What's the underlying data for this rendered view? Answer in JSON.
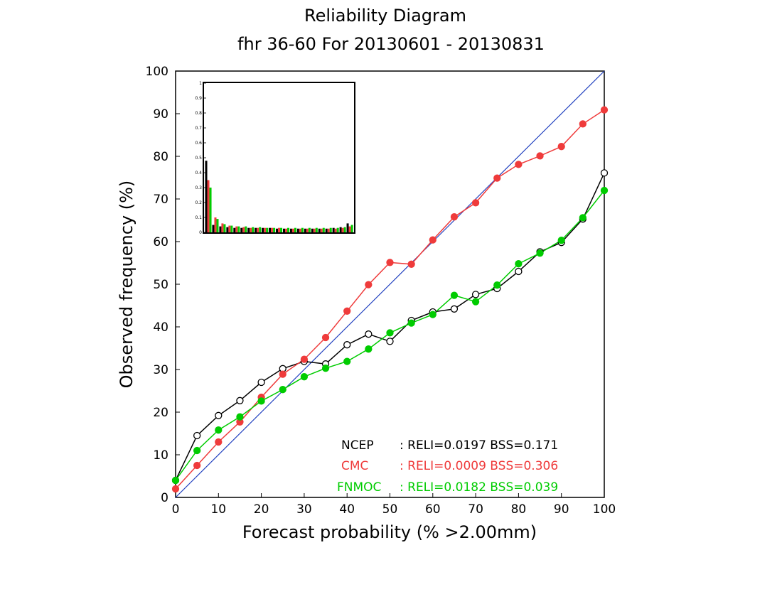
{
  "chart_data": {
    "type": "line",
    "title": "Reliability Diagram",
    "subtitle": "fhr 36-60 For 20130601 - 20130831",
    "xlabel": "Forecast probability (% >2.00mm)",
    "ylabel": "Observed frequency (%)",
    "xlim": [
      0,
      100
    ],
    "ylim": [
      0,
      100
    ],
    "x_ticks": [
      "0",
      "10",
      "20",
      "30",
      "40",
      "50",
      "60",
      "70",
      "80",
      "90",
      "100"
    ],
    "y_ticks": [
      "0",
      "10",
      "20",
      "30",
      "40",
      "50",
      "60",
      "70",
      "80",
      "90",
      "100"
    ],
    "diagonal_color": "#1f3fbf",
    "x": [
      0,
      5,
      10,
      15,
      20,
      25,
      30,
      35,
      40,
      45,
      50,
      55,
      60,
      65,
      70,
      75,
      80,
      85,
      90,
      95,
      100
    ],
    "series": [
      {
        "name": "NCEP",
        "color": "#000000",
        "marker": "open-circle",
        "values": [
          4,
          14.5,
          19.2,
          22.7,
          27,
          30.2,
          31.9,
          31.3,
          35.8,
          38.3,
          36.6,
          41.5,
          43.5,
          44.2,
          47.6,
          49,
          53,
          57.6,
          59.8,
          65.3,
          76.1
        ],
        "stats": ": RELI=0.0197  BSS=0.171"
      },
      {
        "name": "CMC",
        "color": "#ef3b3b",
        "marker": "filled-circle",
        "values": [
          2,
          7.5,
          13,
          17.7,
          23.5,
          28.9,
          32.4,
          37.5,
          43.7,
          49.9,
          55.1,
          54.7,
          60.4,
          65.8,
          69.1,
          74.9,
          78.1,
          80.1,
          82.3,
          87.6,
          90.9
        ],
        "stats": ": RELI=0.0009  BSS=0.306"
      },
      {
        "name": "FNMOC",
        "color": "#00cc00",
        "marker": "filled-circle",
        "values": [
          4,
          11,
          15.8,
          18.9,
          22.6,
          25.3,
          28.3,
          30.3,
          31.9,
          34.8,
          38.6,
          40.9,
          42.9,
          47.4,
          45.9,
          49.8,
          54.8,
          57.3,
          60.3,
          65.6,
          72
        ],
        "stats": ": RELI=0.0182  BSS=0.039"
      }
    ],
    "inset": {
      "type": "bar",
      "description_ylim": [
        0,
        1
      ],
      "y_ticks": [
        "0",
        "0.1",
        "0.2",
        "0.3",
        "0.4",
        "0.5",
        "0.6",
        "0.7",
        "0.8",
        "0.9",
        "1"
      ],
      "bar_colors": [
        "#000000",
        "#ef3b3b",
        "#00cc00"
      ],
      "series": [
        {
          "name": "NCEP",
          "values": [
            0.48,
            0.05,
            0.04,
            0.035,
            0.03,
            0.03,
            0.03,
            0.03,
            0.03,
            0.03,
            0.025,
            0.025,
            0.025,
            0.025,
            0.025,
            0.025,
            0.025,
            0.025,
            0.03,
            0.035,
            0.06
          ]
        },
        {
          "name": "CMC",
          "values": [
            0.35,
            0.1,
            0.06,
            0.045,
            0.04,
            0.035,
            0.03,
            0.03,
            0.03,
            0.03,
            0.03,
            0.025,
            0.025,
            0.025,
            0.025,
            0.025,
            0.025,
            0.025,
            0.025,
            0.03,
            0.04
          ]
        },
        {
          "name": "FNMOC",
          "values": [
            0.3,
            0.09,
            0.055,
            0.045,
            0.04,
            0.04,
            0.035,
            0.035,
            0.03,
            0.03,
            0.03,
            0.03,
            0.03,
            0.03,
            0.03,
            0.03,
            0.03,
            0.03,
            0.03,
            0.035,
            0.05
          ]
        }
      ]
    }
  }
}
